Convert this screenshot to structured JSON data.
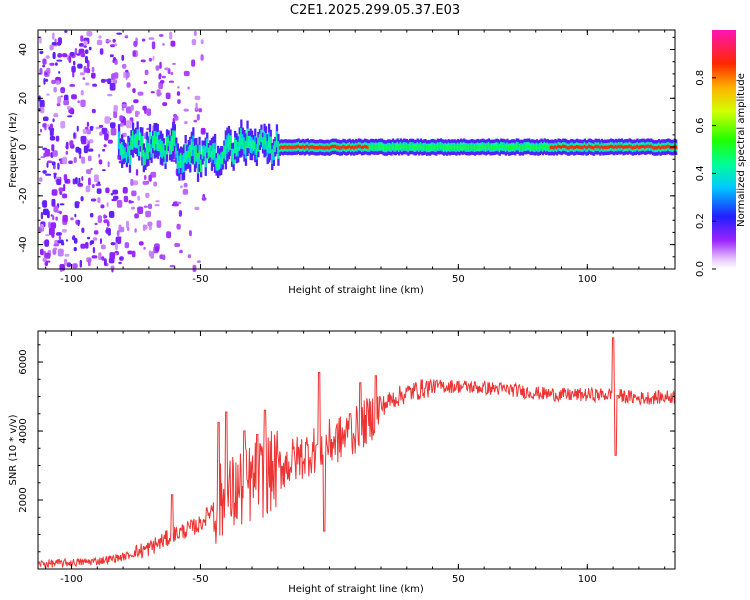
{
  "figure_title": "C2E1.2025.299.05.37.E03",
  "chart_data": [
    {
      "type": "heatmap",
      "name": "spectrogram",
      "xlabel": "Height of straight line (km)",
      "ylabel": "Frequency (Hz)",
      "xlim": [
        -113,
        134
      ],
      "ylim": [
        -50,
        48
      ],
      "xticks": [
        -100,
        -50,
        50,
        100
      ],
      "yticks": [
        -40,
        -20,
        0,
        20,
        40
      ],
      "colorbar": {
        "label": "Normalized spectral amplitude",
        "range": [
          0.0,
          1.0
        ],
        "ticks": [
          "0.0",
          "0.2",
          "0.4",
          "0.6",
          "0.8"
        ],
        "colormap": "rainbow (white-purple-blue-cyan-green-yellow-red-magenta)"
      },
      "features": {
        "noisy_region_x": [
          -113,
          -48
        ],
        "main_band_center_hz": 0,
        "band_start_x": -82,
        "red_core_segments_x": [
          [
            -20,
            15
          ],
          [
            85,
            134
          ]
        ]
      }
    },
    {
      "type": "line",
      "name": "snr",
      "xlabel": "Height of straight line (km)",
      "ylabel": "SNR (10 * v/v)",
      "xlim": [
        -113,
        134
      ],
      "ylim": [
        0,
        6900
      ],
      "xticks": [
        -100,
        -50,
        50,
        100
      ],
      "yticks": [
        2000,
        4000,
        6000
      ],
      "color": "#ee3333",
      "control_points": [
        [
          -113,
          150
        ],
        [
          -100,
          180
        ],
        [
          -90,
          230
        ],
        [
          -80,
          350
        ],
        [
          -70,
          600
        ],
        [
          -60,
          1000
        ],
        [
          -50,
          1300
        ],
        [
          -45,
          1800
        ],
        [
          -40,
          2000
        ],
        [
          -35,
          2300
        ],
        [
          -30,
          2500
        ],
        [
          -25,
          2700
        ],
        [
          -20,
          2900
        ],
        [
          -15,
          3100
        ],
        [
          -10,
          3300
        ],
        [
          -5,
          3500
        ],
        [
          0,
          3650
        ],
        [
          5,
          3800
        ],
        [
          10,
          4000
        ],
        [
          15,
          4300
        ],
        [
          20,
          4700
        ],
        [
          25,
          4950
        ],
        [
          30,
          5100
        ],
        [
          40,
          5300
        ],
        [
          50,
          5300
        ],
        [
          60,
          5250
        ],
        [
          70,
          5200
        ],
        [
          80,
          5100
        ],
        [
          90,
          5050
        ],
        [
          100,
          5050
        ],
        [
          105,
          5050
        ],
        [
          110,
          5050
        ],
        [
          120,
          4950
        ],
        [
          134,
          5000
        ]
      ],
      "spikes": [
        [
          -61,
          2150
        ],
        [
          -43,
          4250
        ],
        [
          -40,
          4550
        ],
        [
          -33,
          4000
        ],
        [
          -28,
          3900
        ],
        [
          -25,
          4600
        ],
        [
          -4,
          5700
        ],
        [
          -2,
          1100
        ],
        [
          8,
          4500
        ],
        [
          12,
          5400
        ],
        [
          18,
          5600
        ],
        [
          110,
          6700
        ],
        [
          111,
          3300
        ]
      ]
    }
  ]
}
